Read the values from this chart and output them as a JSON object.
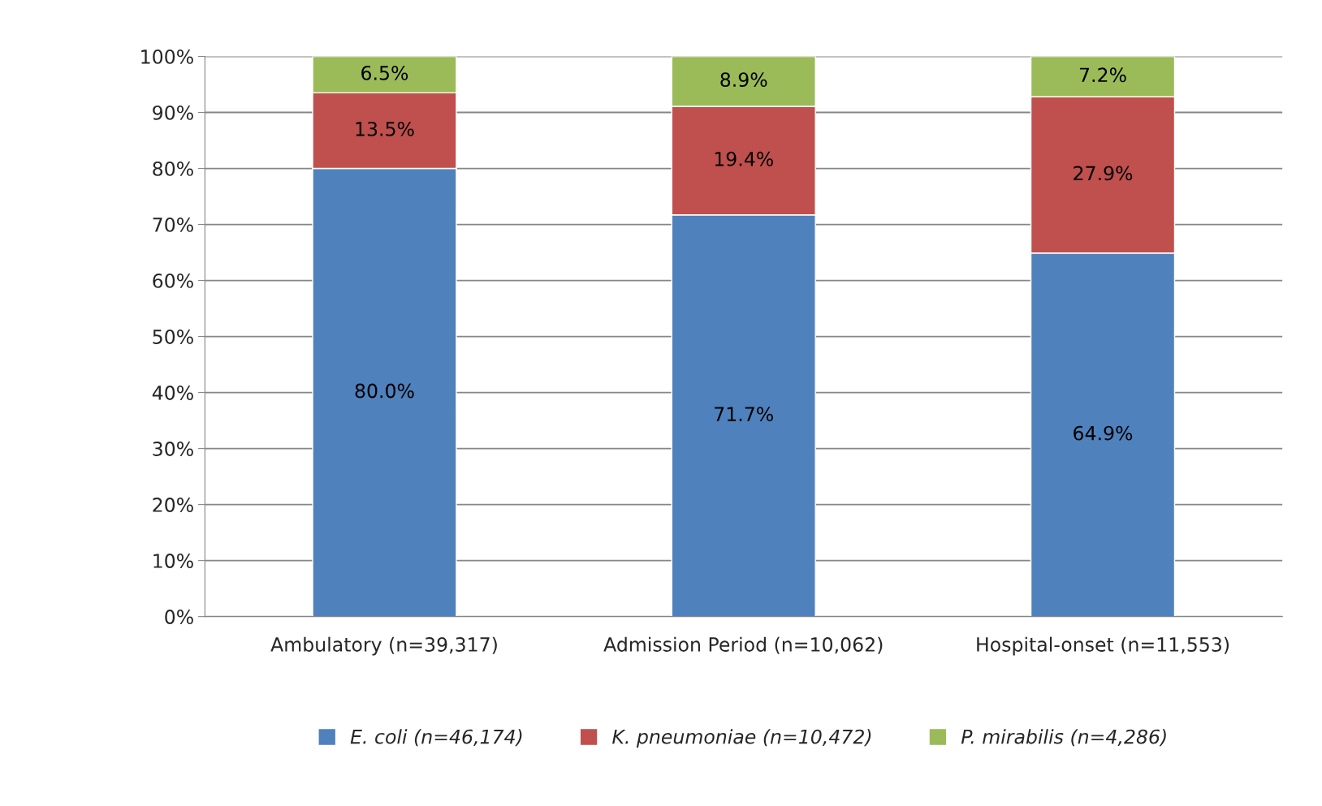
{
  "chart_data": {
    "type": "bar",
    "stacked": true,
    "categories": [
      "Ambulatory (n=39,317)",
      "Admission Period (n=10,062)",
      "Hospital-onset (n=11,553)"
    ],
    "series": [
      {
        "name": "E. coli (n=46,174)",
        "color": "#4f81bd",
        "values": [
          80.0,
          71.7,
          64.9
        ],
        "value_labels": [
          "80.0%",
          "71.7%",
          "64.9%"
        ]
      },
      {
        "name": "K. pneumoniae (n=10,472)",
        "color": "#c0504d",
        "values": [
          13.5,
          19.4,
          27.9
        ],
        "value_labels": [
          "13.5%",
          "19.4%",
          "27.9%"
        ]
      },
      {
        "name": "P. mirabilis (n=4,286)",
        "color": "#9bbb59",
        "values": [
          6.5,
          8.9,
          7.2
        ],
        "value_labels": [
          "6.5%",
          "8.9%",
          "7.2%"
        ]
      }
    ],
    "ylim": [
      0,
      100
    ],
    "yticks": [
      {
        "value": 0,
        "label": "0%"
      },
      {
        "value": 10,
        "label": "10%"
      },
      {
        "value": 20,
        "label": "20%"
      },
      {
        "value": 30,
        "label": "30%"
      },
      {
        "value": 40,
        "label": "40%"
      },
      {
        "value": 50,
        "label": "50%"
      },
      {
        "value": 60,
        "label": "60%"
      },
      {
        "value": 70,
        "label": "70%"
      },
      {
        "value": 80,
        "label": "80%"
      },
      {
        "value": 90,
        "label": "90%"
      },
      {
        "value": 100,
        "label": "100%"
      }
    ],
    "grid": "y",
    "legend": "bottom"
  }
}
